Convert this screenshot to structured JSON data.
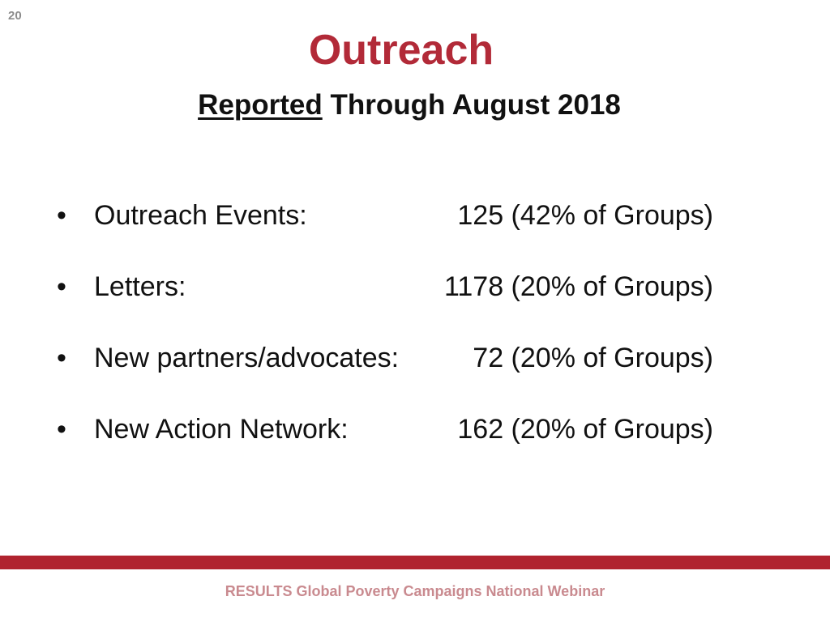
{
  "slide_number": "20",
  "title": "Outreach",
  "subtitle": {
    "underlined": "Reported",
    "rest": " Through August 2018"
  },
  "bullets": [
    {
      "label": "Outreach Events:",
      "value": "125 (42% of Groups)"
    },
    {
      "label": "Letters:",
      "value": "1178 (20% of Groups)"
    },
    {
      "label": "New partners/advocates:",
      "value": "72 (20% of Groups)"
    },
    {
      "label": "New Action Network:",
      "value": "162 (20% of Groups)"
    }
  ],
  "bullet_symbol": "•",
  "footer": "RESULTS Global Poverty Campaigns National Webinar",
  "colors": {
    "title": "#b22a38",
    "band": "#b0232f",
    "footer": "#c98a8f"
  }
}
